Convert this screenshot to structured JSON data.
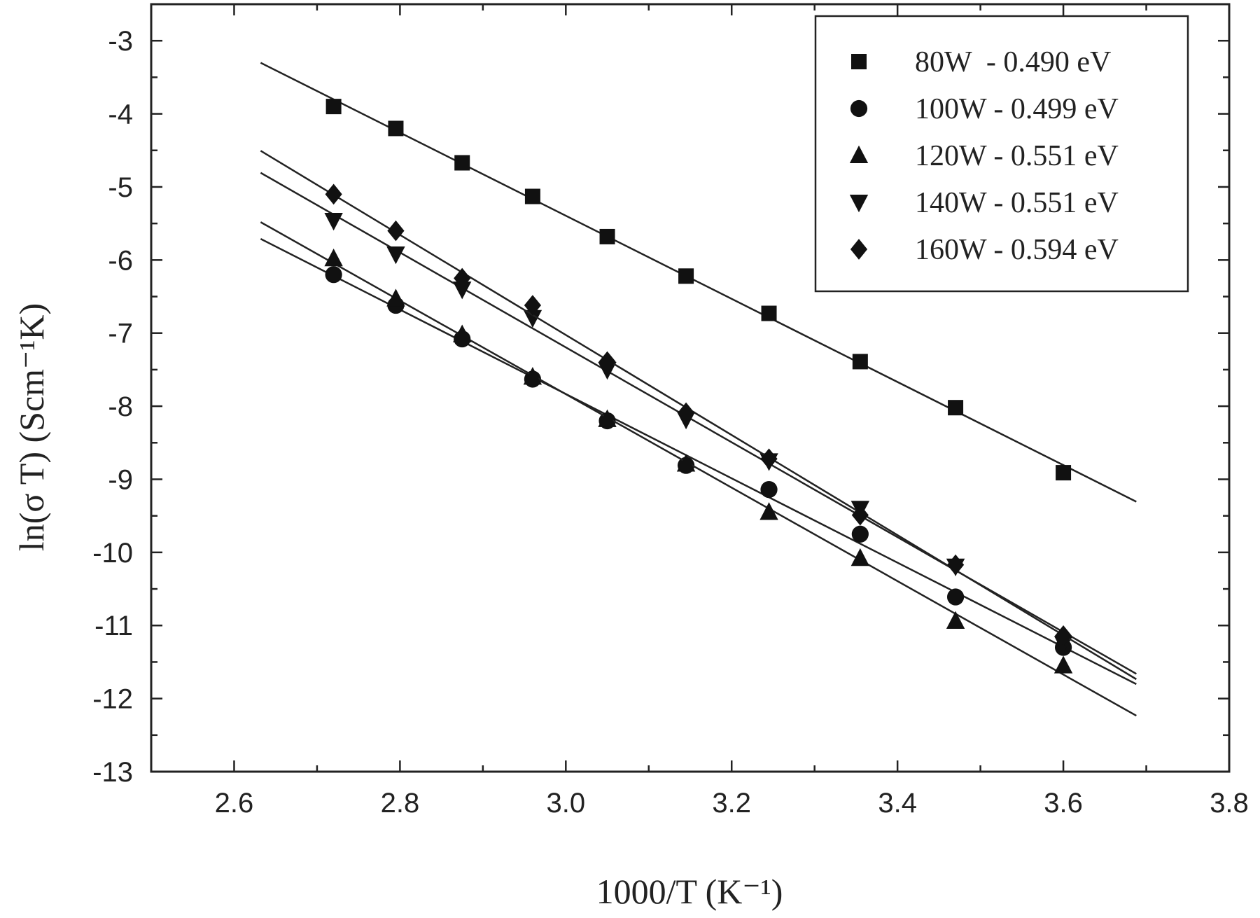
{
  "chart_data": {
    "type": "scatter",
    "x_label": "1000/T (K⁻¹)",
    "y_label": "ln(σ T) (Scm⁻¹K)",
    "x": [
      2.72,
      2.795,
      2.875,
      2.96,
      3.05,
      3.145,
      3.245,
      3.355,
      3.47,
      3.6
    ],
    "series": [
      {
        "name": "80W  - 0.490 eV",
        "marker": "square",
        "color": "#111111",
        "fit": true,
        "values": [
          -3.9,
          -4.2,
          -4.67,
          -5.13,
          -5.68,
          -6.22,
          -6.73,
          -7.39,
          -8.02,
          -8.91
        ]
      },
      {
        "name": "100W - 0.499 eV",
        "marker": "circle",
        "color": "#111111",
        "fit": true,
        "values": [
          -6.2,
          -6.62,
          -7.08,
          -7.63,
          -8.2,
          -8.81,
          -9.14,
          -9.75,
          -10.61,
          -11.3
        ]
      },
      {
        "name": "120W - 0.551 eV",
        "marker": "triangle-up",
        "color": "#111111",
        "fit": true,
        "values": [
          -5.98,
          -6.53,
          -7.02,
          -7.6,
          -8.18,
          -8.79,
          -9.45,
          -10.08,
          -10.94,
          -11.55
        ]
      },
      {
        "name": "140W - 0.551 eV",
        "marker": "triangle-down",
        "color": "#111111",
        "fit": true,
        "values": [
          -5.46,
          -5.92,
          -6.4,
          -6.79,
          -7.5,
          -8.18,
          -8.75,
          -9.4,
          -10.19,
          -11.25
        ]
      },
      {
        "name": "160W - 0.594 eV",
        "marker": "diamond",
        "color": "#111111",
        "fit": true,
        "values": [
          -5.1,
          -5.6,
          -6.25,
          -6.62,
          -7.39,
          -8.09,
          -8.72,
          -9.49,
          -10.17,
          -11.14
        ]
      }
    ],
    "xlim": [
      2.5,
      3.8
    ],
    "ylim": [
      -13,
      -2.5
    ],
    "xticks": [
      2.6,
      2.8,
      {
        "value": 3,
        "label": "3.0"
      },
      3.2,
      3.4,
      3.6,
      3.8
    ],
    "yticks": [
      -3,
      -4,
      -5,
      -6,
      -7,
      -8,
      -9,
      -10,
      -11,
      -12,
      -13
    ],
    "legend": "upper right",
    "grid": false
  }
}
